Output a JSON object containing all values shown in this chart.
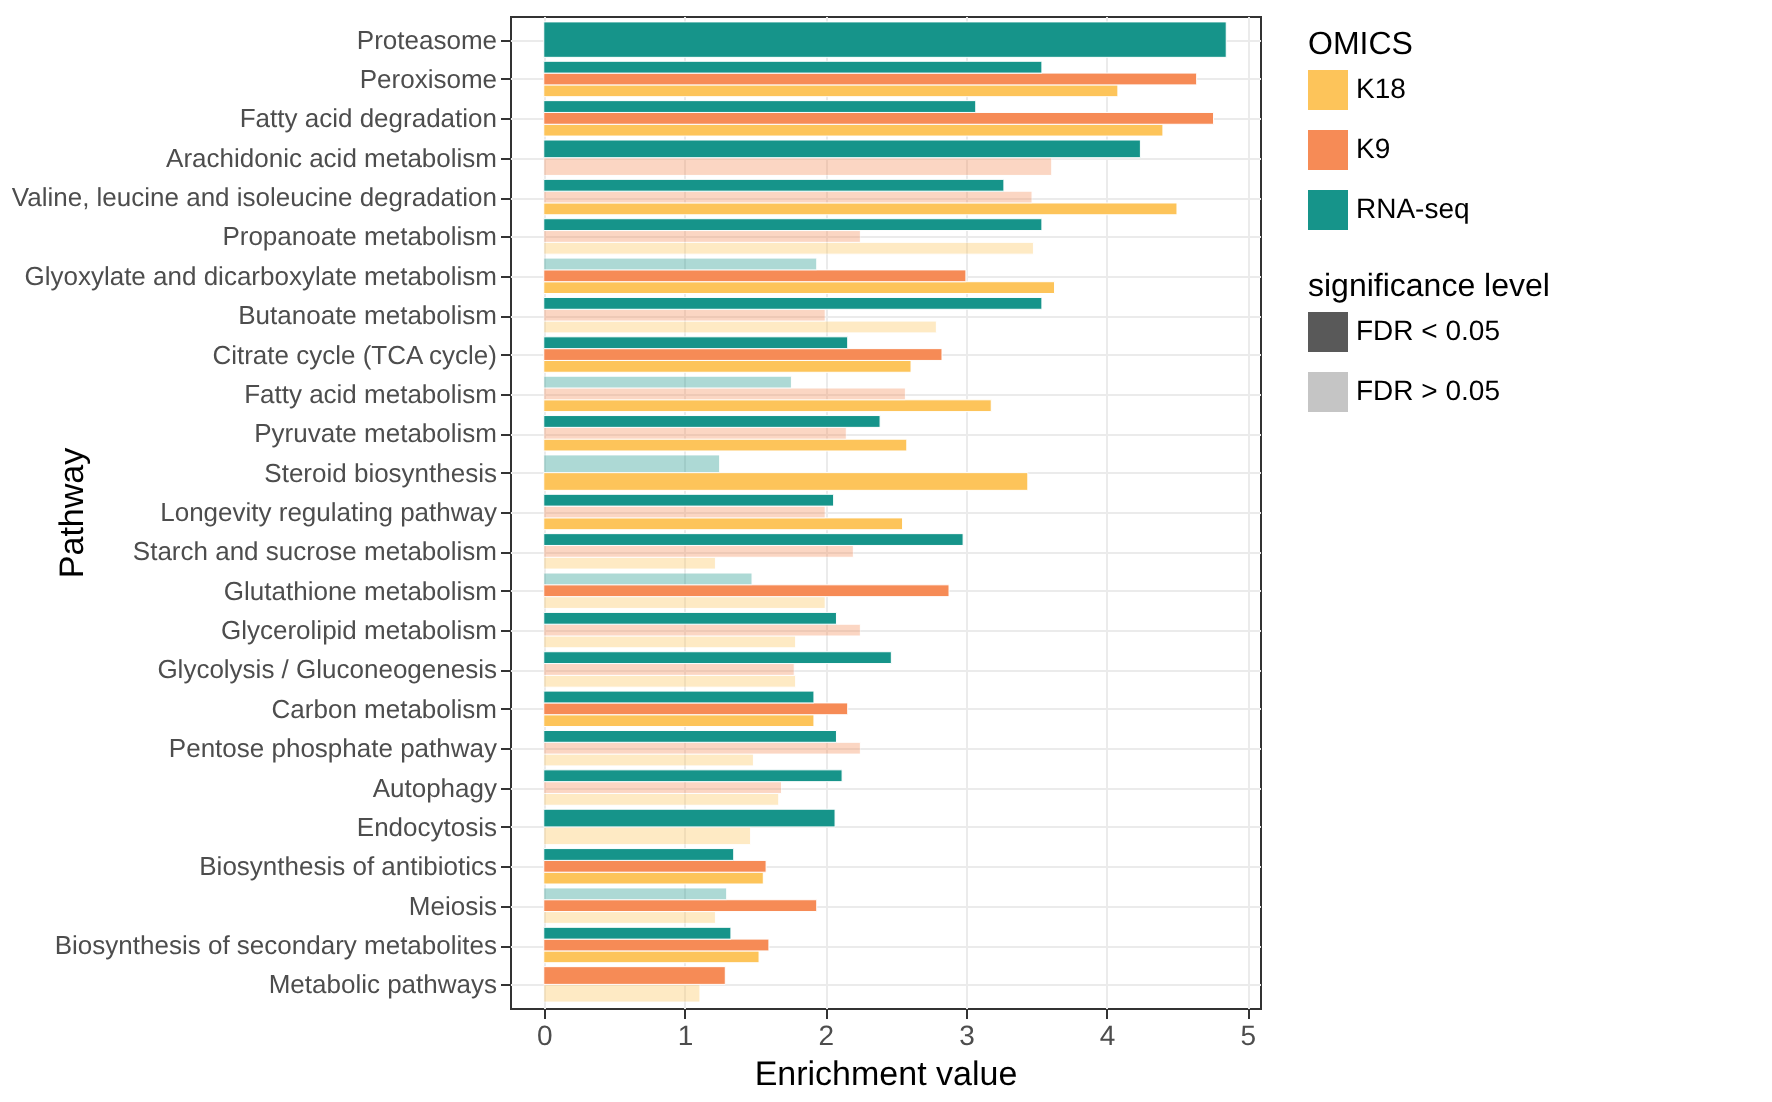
{
  "chart_data": {
    "type": "bar",
    "orientation": "horizontal",
    "xlabel": "Enrichment value",
    "ylabel": "Pathway",
    "legend_title": "OMICS",
    "legend": "right",
    "grid": true,
    "categories": [
      "Proteasome",
      "Peroxisome",
      "Fatty acid degradation",
      "Arachidonic acid metabolism",
      "Valine, leucine and isoleucine degradation",
      "Propanoate metabolism",
      "Glyoxylate and dicarboxylate metabolism",
      "Butanoate metabolism",
      "Citrate cycle (TCA cycle)",
      "Fatty acid metabolism",
      "Pyruvate metabolism",
      "Steroid biosynthesis",
      "Longevity regulating pathway",
      "Starch and sucrose metabolism",
      "Glutathione metabolism",
      "Glycerolipid metabolism",
      "Glycolysis / Gluconeogenesis",
      "Carbon metabolism",
      "Pentose phosphate pathway",
      "Autophagy",
      "Endocytosis",
      "Biosynthesis of antibiotics",
      "Meiosis",
      "Biosynthesis of secondary metabolites",
      "Metabolic pathways"
    ],
    "xlim": [
      -0.24,
      5.09
    ],
    "xticks": [
      0,
      1,
      2,
      3,
      4,
      5
    ],
    "annotations": [
      "significance level",
      "FDR < 0.05",
      "FDR > 0.05"
    ],
    "series": [
      {
        "name": "K18",
        "color": "#fdc45a",
        "values": [
          null,
          4.08,
          4.4,
          null,
          4.5,
          3.48,
          3.63,
          2.79,
          2.61,
          3.18,
          2.58,
          3.44,
          2.55,
          1.22,
          2.0,
          1.79,
          1.79,
          1.92,
          1.49,
          1.67,
          1.47,
          1.56,
          1.22,
          1.53,
          1.11
        ],
        "colors": [
          null,
          "#fdc45a",
          "#fdc45a",
          null,
          "#fdc45a",
          "#feeac5",
          "#fdc45a",
          "#feeac5",
          "#fdc45a",
          "#fdc45a",
          "#fdc45a",
          "#fdc45a",
          "#fdc45a",
          "#feeac5",
          "#feeac5",
          "#feeac5",
          "#feeac5",
          "#fdc45a",
          "#feeac5",
          "#feeac5",
          "#feeac5",
          "#fdc45a",
          "#feeac5",
          "#fdc45a",
          "#feeac5"
        ]
      },
      {
        "name": "K9",
        "color": "#f68b56",
        "values": [
          null,
          4.64,
          4.76,
          3.61,
          3.47,
          2.25,
          3.0,
          2.0,
          2.83,
          2.57,
          2.15,
          null,
          2.0,
          2.2,
          2.88,
          2.25,
          1.78,
          2.16,
          2.25,
          1.69,
          null,
          1.58,
          1.94,
          1.6,
          1.29
        ],
        "colors": [
          null,
          "#f68b56",
          "#f68b56",
          "#fcd6c4",
          "#fcd6c4",
          "#fcd6c4",
          "#f68b56",
          "#fcd6c4",
          "#f68b56",
          "#fcd6c4",
          "#fcd6c4",
          null,
          "#fcd6c4",
          "#fcd6c4",
          "#f68b56",
          "#fcd6c4",
          "#fcd6c4",
          "#f68b56",
          "#fcd6c4",
          "#fcd6c4",
          null,
          "#f68b56",
          "#f68b56",
          "#f68b56",
          "#f68b56"
        ]
      },
      {
        "name": "RNA-seq",
        "color": "#16948a",
        "values": [
          4.85,
          3.54,
          3.07,
          4.24,
          3.27,
          3.54,
          1.94,
          3.54,
          2.16,
          1.76,
          2.39,
          1.25,
          2.06,
          2.98,
          1.48,
          2.08,
          2.47,
          1.92,
          2.08,
          2.12,
          2.07,
          1.35,
          1.3,
          1.33,
          null
        ],
        "colors": [
          "#16948a",
          "#16948a",
          "#16948a",
          "#16948a",
          "#16948a",
          "#16948a",
          "#add9d6",
          "#16948a",
          "#16948a",
          "#add9d6",
          "#16948a",
          "#add9d6",
          "#16948a",
          "#16948a",
          "#add9d6",
          "#16948a",
          "#16948a",
          "#16948a",
          "#16948a",
          "#16948a",
          "#16948a",
          "#16948a",
          "#add9d6",
          "#16948a",
          null
        ]
      }
    ]
  }
}
